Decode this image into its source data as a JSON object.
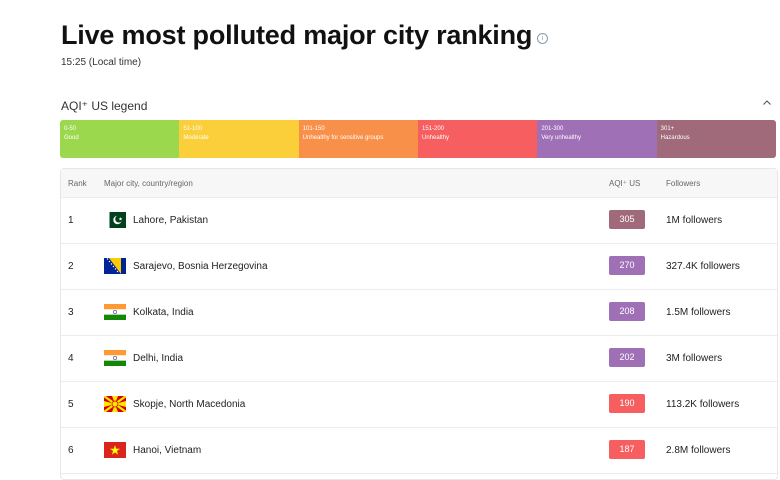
{
  "header": {
    "title": "Live most polluted major city ranking",
    "info_icon": "info-icon",
    "time": "15:25 (Local time)"
  },
  "legend": {
    "title": "AQI⁺ US legend",
    "toggle_icon": "chevron-up-icon",
    "levels": [
      {
        "range": "0-50",
        "label": "Good",
        "color": "#9cd84e"
      },
      {
        "range": "51-100",
        "label": "Moderate",
        "color": "#facf39"
      },
      {
        "range": "101-150",
        "label": "Unhealthy for sensitive groups",
        "color": "#f99049"
      },
      {
        "range": "151-200",
        "label": "Unhealthy",
        "color": "#f65e5f"
      },
      {
        "range": "201-300",
        "label": "Very unhealthy",
        "color": "#a070b6"
      },
      {
        "range": "301+",
        "label": "Hazardous",
        "color": "#a06a7b"
      }
    ]
  },
  "table": {
    "headers": {
      "rank": "Rank",
      "city": "Major city, country/region",
      "aqi": "AQI⁺ US",
      "followers": "Followers"
    },
    "rows": [
      {
        "rank": "1",
        "city": "Lahore, Pakistan",
        "flag": "pakistan-flag-icon",
        "aqi": "305",
        "aqi_color": "#a06a7b",
        "followers": "1M followers"
      },
      {
        "rank": "2",
        "city": "Sarajevo, Bosnia Herzegovina",
        "flag": "bosnia-flag-icon",
        "aqi": "270",
        "aqi_color": "#a070b6",
        "followers": "327.4K followers"
      },
      {
        "rank": "3",
        "city": "Kolkata, India",
        "flag": "india-flag-icon",
        "aqi": "208",
        "aqi_color": "#a070b6",
        "followers": "1.5M followers"
      },
      {
        "rank": "4",
        "city": "Delhi, India",
        "flag": "india-flag-icon",
        "aqi": "202",
        "aqi_color": "#a070b6",
        "followers": "3M followers"
      },
      {
        "rank": "5",
        "city": "Skopje, North Macedonia",
        "flag": "north-macedonia-flag-icon",
        "aqi": "190",
        "aqi_color": "#f65e5f",
        "followers": "113.2K followers"
      },
      {
        "rank": "6",
        "city": "Hanoi, Vietnam",
        "flag": "vietnam-flag-icon",
        "aqi": "187",
        "aqi_color": "#f65e5f",
        "followers": "2.8M followers"
      }
    ]
  }
}
